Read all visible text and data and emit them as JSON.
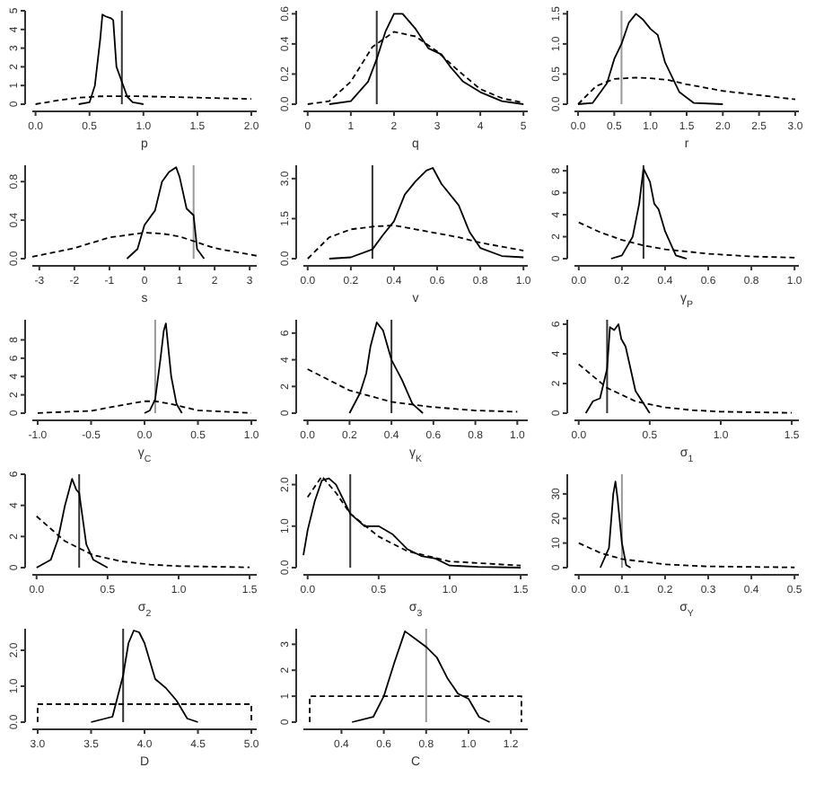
{
  "chart_data": [
    {
      "type": "line",
      "xlabel": "p",
      "xlim": [
        -0.03,
        2.05
      ],
      "xticks": [
        {
          "value": 0,
          "label": "0.0"
        },
        {
          "value": 0.5,
          "label": "0.5"
        },
        {
          "value": 1,
          "label": "1.0"
        },
        {
          "value": 1.5,
          "label": "1.5"
        },
        {
          "value": 2,
          "label": "2.0"
        }
      ],
      "ylim": [
        0,
        5
      ],
      "yticks": [
        0,
        1,
        2,
        3,
        4,
        5
      ],
      "ref_lines": [
        {
          "axis": "x",
          "value": 0.8,
          "color": "#333333"
        }
      ],
      "series": [
        {
          "color": "#000000",
          "line_style": "solid",
          "x": [
            0.4,
            0.5,
            0.55,
            0.6,
            0.62,
            0.65,
            0.7,
            0.72,
            0.75,
            0.8,
            0.85,
            0.9,
            0.95,
            1.0
          ],
          "values": [
            0,
            0.1,
            1,
            3.5,
            4.8,
            4.7,
            4.6,
            4.5,
            2,
            1.2,
            0.4,
            0.1,
            0.05,
            0
          ]
        },
        {
          "color": "#000000",
          "line_style": "dashed",
          "x": [
            0,
            0.2,
            0.4,
            0.6,
            0.8,
            1.0,
            1.5,
            2.0
          ],
          "values": [
            0,
            0.2,
            0.35,
            0.42,
            0.43,
            0.42,
            0.35,
            0.28
          ]
        }
      ]
    },
    {
      "type": "line",
      "xlabel": "q",
      "xlim": [
        -0.1,
        5.1
      ],
      "xticks": [
        0,
        1,
        2,
        3,
        4,
        5
      ],
      "ylim": [
        0,
        0.62
      ],
      "yticks": [
        {
          "value": 0,
          "label": "0.0"
        },
        {
          "value": 0.2,
          "label": "0.2"
        },
        {
          "value": 0.4,
          "label": "0.4"
        },
        {
          "value": 0.6,
          "label": "0.6"
        }
      ],
      "ref_lines": [
        {
          "axis": "x",
          "value": 1.6,
          "color": "#333333"
        }
      ],
      "series": [
        {
          "color": "#000000",
          "line_style": "solid",
          "x": [
            0.5,
            1,
            1.4,
            1.6,
            1.8,
            2,
            2.2,
            2.5,
            2.8,
            3.1,
            3.3,
            3.6,
            4,
            4.5,
            5
          ],
          "values": [
            0,
            0.02,
            0.15,
            0.3,
            0.48,
            0.6,
            0.6,
            0.5,
            0.37,
            0.33,
            0.25,
            0.15,
            0.08,
            0.02,
            0
          ]
        },
        {
          "color": "#000000",
          "line_style": "dashed",
          "x": [
            0,
            0.5,
            1,
            1.5,
            2,
            2.5,
            3,
            3.5,
            4,
            4.5,
            5
          ],
          "values": [
            0,
            0.02,
            0.15,
            0.38,
            0.48,
            0.45,
            0.35,
            0.22,
            0.1,
            0.04,
            0.01
          ]
        }
      ]
    },
    {
      "type": "line",
      "xlabel": "r",
      "xlim": [
        -0.05,
        3.05
      ],
      "xticks": [
        {
          "value": 0,
          "label": "0.0"
        },
        {
          "value": 0.5,
          "label": "0.5"
        },
        {
          "value": 1,
          "label": "1.0"
        },
        {
          "value": 1.5,
          "label": "1.5"
        },
        {
          "value": 2,
          "label": "2.0"
        },
        {
          "value": 2.5,
          "label": "2.5"
        },
        {
          "value": 3,
          "label": "3.0"
        }
      ],
      "ylim": [
        0,
        1.55
      ],
      "yticks": [
        {
          "value": 0,
          "label": "0.0"
        },
        {
          "value": 0.5,
          "label": "0.5"
        },
        {
          "value": 1,
          "label": "1.0"
        },
        {
          "value": 1.5,
          "label": "1.5"
        }
      ],
      "ref_lines": [
        {
          "axis": "x",
          "value": 0.6,
          "color": "#999999"
        }
      ],
      "series": [
        {
          "color": "#000000",
          "line_style": "solid",
          "x": [
            0,
            0.2,
            0.4,
            0.5,
            0.6,
            0.7,
            0.8,
            0.9,
            1.0,
            1.1,
            1.2,
            1.4,
            1.6,
            2.0
          ],
          "values": [
            0,
            0.02,
            0.35,
            0.75,
            1.0,
            1.35,
            1.5,
            1.4,
            1.25,
            1.15,
            0.7,
            0.2,
            0.02,
            0
          ]
        },
        {
          "color": "#000000",
          "line_style": "dashed",
          "x": [
            0,
            0.25,
            0.5,
            0.8,
            1.0,
            1.25,
            1.5,
            2,
            2.5,
            3
          ],
          "values": [
            0,
            0.3,
            0.42,
            0.44,
            0.43,
            0.4,
            0.33,
            0.22,
            0.15,
            0.08
          ]
        }
      ]
    },
    {
      "type": "line",
      "xlabel": "s",
      "xlim": [
        -3.2,
        3.2
      ],
      "xticks": [
        -3,
        -2,
        -1,
        0,
        1,
        2,
        3
      ],
      "ylim": [
        0,
        0.97
      ],
      "yticks": [
        {
          "value": 0,
          "label": "0.0"
        },
        {
          "value": 0.4,
          "label": "0.4"
        },
        {
          "value": 0.8,
          "label": "0.8"
        }
      ],
      "ref_lines": [
        {
          "axis": "x",
          "value": 1.4,
          "color": "#999999"
        }
      ],
      "series": [
        {
          "color": "#000000",
          "line_style": "solid",
          "x": [
            -0.5,
            -0.2,
            0,
            0.3,
            0.5,
            0.7,
            0.9,
            1.0,
            1.2,
            1.4,
            1.5,
            1.7
          ],
          "values": [
            0,
            0.1,
            0.35,
            0.5,
            0.8,
            0.9,
            0.95,
            0.85,
            0.52,
            0.45,
            0.1,
            0
          ]
        },
        {
          "color": "#000000",
          "line_style": "dashed",
          "x": [
            -3.2,
            -2,
            -1,
            0,
            0.5,
            1,
            2,
            3.2
          ],
          "values": [
            0.02,
            0.11,
            0.22,
            0.27,
            0.26,
            0.23,
            0.11,
            0.03
          ]
        }
      ]
    },
    {
      "type": "line",
      "xlabel": "v",
      "xlim": [
        -0.02,
        1.02
      ],
      "xticks": [
        {
          "value": 0,
          "label": "0.0"
        },
        {
          "value": 0.2,
          "label": "0.2"
        },
        {
          "value": 0.4,
          "label": "0.4"
        },
        {
          "value": 0.6,
          "label": "0.6"
        },
        {
          "value": 0.8,
          "label": "0.8"
        },
        {
          "value": 1,
          "label": "1.0"
        }
      ],
      "ylim": [
        0,
        3.5
      ],
      "yticks": [
        {
          "value": 0,
          "label": "0.0"
        },
        {
          "value": 1.5,
          "label": "1.5"
        },
        {
          "value": 3,
          "label": "3.0"
        }
      ],
      "ref_lines": [
        {
          "axis": "x",
          "value": 0.3,
          "color": "#333333"
        }
      ],
      "series": [
        {
          "color": "#000000",
          "line_style": "solid",
          "x": [
            0.1,
            0.2,
            0.3,
            0.35,
            0.4,
            0.45,
            0.5,
            0.55,
            0.58,
            0.62,
            0.7,
            0.75,
            0.8,
            0.9,
            1.0
          ],
          "values": [
            0,
            0.05,
            0.35,
            0.9,
            1.4,
            2.4,
            2.9,
            3.3,
            3.4,
            2.8,
            2.0,
            1.0,
            0.4,
            0.1,
            0.05
          ]
        },
        {
          "color": "#000000",
          "line_style": "dashed",
          "x": [
            0,
            0.1,
            0.2,
            0.3,
            0.4,
            0.5,
            0.6,
            0.7,
            0.8,
            0.9,
            1.0
          ],
          "values": [
            0,
            0.8,
            1.1,
            1.2,
            1.25,
            1.1,
            0.95,
            0.8,
            0.6,
            0.45,
            0.3
          ]
        }
      ]
    },
    {
      "type": "line",
      "xlabel": "γ$_{P}$",
      "xlim": [
        -0.02,
        1.02
      ],
      "xticks": [
        {
          "value": 0,
          "label": "0.0"
        },
        {
          "value": 0.2,
          "label": "0.2"
        },
        {
          "value": 0.4,
          "label": "0.4"
        },
        {
          "value": 0.6,
          "label": "0.6"
        },
        {
          "value": 0.8,
          "label": "0.8"
        },
        {
          "value": 1,
          "label": "1.0"
        }
      ],
      "ylim": [
        0,
        8.5
      ],
      "yticks": [
        0,
        2,
        4,
        6,
        8
      ],
      "ref_lines": [
        {
          "axis": "x",
          "value": 0.3,
          "color": "#333333"
        }
      ],
      "series": [
        {
          "color": "#000000",
          "line_style": "solid",
          "x": [
            0.15,
            0.2,
            0.25,
            0.28,
            0.3,
            0.33,
            0.35,
            0.37,
            0.4,
            0.45,
            0.5
          ],
          "values": [
            0,
            0.3,
            2,
            5,
            8.2,
            7,
            5,
            4.5,
            2.5,
            0.3,
            0
          ]
        },
        {
          "color": "#000000",
          "line_style": "dashed",
          "x": [
            0,
            0.1,
            0.2,
            0.3,
            0.4,
            0.6,
            0.8,
            1.0
          ],
          "values": [
            3.3,
            2.4,
            1.7,
            1.2,
            0.85,
            0.45,
            0.2,
            0.1
          ]
        }
      ]
    },
    {
      "type": "line",
      "xlabel": "γ$_{C}$",
      "xlim": [
        -1.05,
        1.05
      ],
      "xticks": [
        {
          "value": -1,
          "label": "-1.0"
        },
        {
          "value": -0.5,
          "label": "-0.5"
        },
        {
          "value": 0,
          "label": "0.0"
        },
        {
          "value": 0.5,
          "label": "0.5"
        },
        {
          "value": 1,
          "label": "1.0"
        }
      ],
      "ylim": [
        0,
        10.2
      ],
      "yticks": [
        0,
        2,
        4,
        6,
        8
      ],
      "ref_lines": [
        {
          "axis": "x",
          "value": 0.1,
          "color": "#999999"
        }
      ],
      "series": [
        {
          "color": "#000000",
          "line_style": "solid",
          "x": [
            0,
            0.05,
            0.1,
            0.15,
            0.18,
            0.2,
            0.25,
            0.3,
            0.35
          ],
          "values": [
            0,
            0.3,
            1.5,
            6,
            9,
            9.8,
            4,
            1,
            0
          ]
        },
        {
          "color": "#000000",
          "line_style": "dashed",
          "x": [
            -1,
            -0.5,
            -0.25,
            0,
            0.1,
            0.25,
            0.5,
            1
          ],
          "values": [
            0.02,
            0.25,
            0.8,
            1.3,
            1.3,
            1.0,
            0.3,
            0.02
          ]
        }
      ]
    },
    {
      "type": "line",
      "xlabel": "γ$_{K}$",
      "xlim": [
        -0.02,
        1.05
      ],
      "xticks": [
        {
          "value": 0,
          "label": "0.0"
        },
        {
          "value": 0.2,
          "label": "0.2"
        },
        {
          "value": 0.4,
          "label": "0.4"
        },
        {
          "value": 0.6,
          "label": "0.6"
        },
        {
          "value": 0.8,
          "label": "0.8"
        },
        {
          "value": 1,
          "label": "1.0"
        }
      ],
      "ylim": [
        0,
        7
      ],
      "yticks": [
        0,
        2,
        4,
        6
      ],
      "ref_lines": [
        {
          "axis": "x",
          "value": 0.4,
          "color": "#333333"
        }
      ],
      "series": [
        {
          "color": "#000000",
          "line_style": "solid",
          "x": [
            0.2,
            0.25,
            0.28,
            0.3,
            0.33,
            0.36,
            0.4,
            0.45,
            0.5,
            0.55
          ],
          "values": [
            0,
            1.5,
            3,
            5,
            6.8,
            6.2,
            4,
            2.5,
            0.7,
            0
          ]
        },
        {
          "color": "#000000",
          "line_style": "dashed",
          "x": [
            0,
            0.2,
            0.4,
            0.6,
            0.8,
            1.0
          ],
          "values": [
            3.3,
            1.7,
            0.85,
            0.45,
            0.2,
            0.1
          ]
        }
      ]
    },
    {
      "type": "line",
      "xlabel": "σ$_{1}$",
      "xlim": [
        -0.03,
        1.55
      ],
      "xticks": [
        {
          "value": 0,
          "label": "0.0"
        },
        {
          "value": 0.5,
          "label": "0.5"
        },
        {
          "value": 1,
          "label": "1.0"
        },
        {
          "value": 1.5,
          "label": "1.5"
        }
      ],
      "ylim": [
        0,
        6.3
      ],
      "yticks": [
        0,
        2,
        4,
        6
      ],
      "ref_lines": [
        {
          "axis": "x",
          "value": 0.2,
          "color": "#333333"
        }
      ],
      "series": [
        {
          "color": "#000000",
          "line_style": "solid",
          "x": [
            0.05,
            0.1,
            0.15,
            0.2,
            0.22,
            0.25,
            0.28,
            0.3,
            0.33,
            0.4,
            0.5
          ],
          "values": [
            0,
            0.8,
            1,
            3,
            5.8,
            5.6,
            6,
            5,
            4.5,
            1.5,
            0
          ]
        },
        {
          "color": "#000000",
          "line_style": "dashed",
          "x": [
            0,
            0.2,
            0.4,
            0.6,
            0.8,
            1,
            1.5
          ],
          "values": [
            3.3,
            1.7,
            0.8,
            0.4,
            0.2,
            0.1,
            0.02
          ]
        }
      ]
    },
    {
      "type": "line",
      "xlabel": "σ$_{2}$",
      "xlim": [
        -0.03,
        1.55
      ],
      "xticks": [
        {
          "value": 0,
          "label": "0.0"
        },
        {
          "value": 0.5,
          "label": "0.5"
        },
        {
          "value": 1,
          "label": "1.0"
        },
        {
          "value": 1.5,
          "label": "1.5"
        }
      ],
      "ylim": [
        0,
        6
      ],
      "yticks": [
        0,
        2,
        4,
        6
      ],
      "ref_lines": [
        {
          "axis": "x",
          "value": 0.3,
          "color": "#333333"
        }
      ],
      "series": [
        {
          "color": "#000000",
          "line_style": "solid",
          "x": [
            0,
            0.1,
            0.15,
            0.2,
            0.25,
            0.28,
            0.3,
            0.35,
            0.4,
            0.5
          ],
          "values": [
            0,
            0.5,
            1.8,
            4,
            5.7,
            5,
            4.8,
            1.5,
            0.5,
            0
          ]
        },
        {
          "color": "#000000",
          "line_style": "dashed",
          "x": [
            0,
            0.2,
            0.4,
            0.6,
            0.8,
            1,
            1.5
          ],
          "values": [
            3.3,
            1.7,
            0.8,
            0.4,
            0.2,
            0.1,
            0.02
          ]
        }
      ]
    },
    {
      "type": "line",
      "xlabel": "σ$_{3}$",
      "xlim": [
        -0.03,
        1.55
      ],
      "xticks": [
        {
          "value": 0,
          "label": "0.0"
        },
        {
          "value": 0.5,
          "label": "0.5"
        },
        {
          "value": 1,
          "label": "1.0"
        },
        {
          "value": 1.5,
          "label": "1.5"
        }
      ],
      "ylim": [
        0,
        2.25
      ],
      "yticks": [
        {
          "value": 0,
          "label": "0.0"
        },
        {
          "value": 1,
          "label": "1.0"
        },
        {
          "value": 2,
          "label": "2.0"
        }
      ],
      "ref_lines": [
        {
          "axis": "x",
          "value": 0.3,
          "color": "#333333"
        }
      ],
      "series": [
        {
          "color": "#000000",
          "line_style": "solid",
          "x": [
            -0.03,
            0,
            0.05,
            0.1,
            0.15,
            0.2,
            0.3,
            0.4,
            0.5,
            0.6,
            0.7,
            0.8,
            0.9,
            1.0,
            1.2,
            1.5
          ],
          "values": [
            0.3,
            0.9,
            1.6,
            2.1,
            2.15,
            2.0,
            1.3,
            1.0,
            1.0,
            0.8,
            0.45,
            0.28,
            0.22,
            0.05,
            0.02,
            0
          ]
        },
        {
          "color": "#000000",
          "line_style": "dashed",
          "x": [
            0,
            0.1,
            0.2,
            0.3,
            0.5,
            0.7,
            1,
            1.5
          ],
          "values": [
            1.7,
            2.2,
            1.8,
            1.3,
            0.75,
            0.4,
            0.15,
            0.05
          ]
        }
      ]
    },
    {
      "type": "line",
      "xlabel": "σ$_{Y}$",
      "xlim": [
        -0.01,
        0.51
      ],
      "xticks": [
        {
          "value": 0,
          "label": "0.0"
        },
        {
          "value": 0.1,
          "label": "0.1"
        },
        {
          "value": 0.2,
          "label": "0.2"
        },
        {
          "value": 0.3,
          "label": "0.3"
        },
        {
          "value": 0.4,
          "label": "0.4"
        },
        {
          "value": 0.5,
          "label": "0.5"
        }
      ],
      "ylim": [
        0,
        38
      ],
      "yticks": [
        0,
        10,
        20,
        30
      ],
      "ref_lines": [
        {
          "axis": "x",
          "value": 0.1,
          "color": "#999999"
        }
      ],
      "series": [
        {
          "color": "#000000",
          "line_style": "solid",
          "x": [
            0.05,
            0.07,
            0.08,
            0.085,
            0.09,
            0.1,
            0.11,
            0.12
          ],
          "values": [
            0,
            8,
            30,
            35,
            28,
            10,
            1,
            0
          ]
        },
        {
          "color": "#000000",
          "line_style": "dashed",
          "x": [
            0,
            0.05,
            0.1,
            0.2,
            0.3,
            0.5
          ],
          "values": [
            10,
            6,
            3.5,
            1.3,
            0.5,
            0.1
          ]
        }
      ]
    },
    {
      "type": "line",
      "xlabel": "D",
      "xlim": [
        2.95,
        5.05
      ],
      "xticks": [
        {
          "value": 3,
          "label": "3.0"
        },
        {
          "value": 3.5,
          "label": "3.5"
        },
        {
          "value": 4,
          "label": "4.0"
        },
        {
          "value": 4.5,
          "label": "4.5"
        },
        {
          "value": 5,
          "label": "5.0"
        }
      ],
      "ylim": [
        0,
        2.6
      ],
      "yticks": [
        {
          "value": 0,
          "label": "0.0"
        },
        {
          "value": 1,
          "label": "1.0"
        },
        {
          "value": 2,
          "label": "2.0"
        }
      ],
      "ref_lines": [
        {
          "axis": "x",
          "value": 3.8,
          "color": "#333333"
        }
      ],
      "series": [
        {
          "color": "#000000",
          "line_style": "solid",
          "x": [
            3.5,
            3.7,
            3.8,
            3.85,
            3.9,
            3.95,
            4.0,
            4.1,
            4.2,
            4.3,
            4.4,
            4.5
          ],
          "values": [
            0,
            0.15,
            1.3,
            2.2,
            2.55,
            2.5,
            2.2,
            1.2,
            0.95,
            0.6,
            0.1,
            0
          ]
        },
        {
          "color": "#000000",
          "line_style": "dashed",
          "x": [
            3,
            3,
            5,
            5
          ],
          "values": [
            0,
            0.5,
            0.5,
            0
          ]
        }
      ]
    },
    {
      "type": "line",
      "xlabel": "C",
      "xlim": [
        0.22,
        1.28
      ],
      "xticks": [
        {
          "value": 0.4,
          "label": "0.4"
        },
        {
          "value": 0.6,
          "label": "0.6"
        },
        {
          "value": 0.8,
          "label": "0.8"
        },
        {
          "value": 1,
          "label": "1.0"
        },
        {
          "value": 1.2,
          "label": "1.2"
        }
      ],
      "ylim": [
        0,
        3.6
      ],
      "yticks": [
        0,
        1,
        2,
        3
      ],
      "ref_lines": [
        {
          "axis": "x",
          "value": 0.8,
          "color": "#999999"
        }
      ],
      "series": [
        {
          "color": "#000000",
          "line_style": "solid",
          "x": [
            0.45,
            0.55,
            0.6,
            0.65,
            0.7,
            0.75,
            0.8,
            0.85,
            0.9,
            0.95,
            1.0,
            1.05,
            1.1
          ],
          "values": [
            0,
            0.2,
            1.0,
            2.3,
            3.5,
            3.2,
            2.9,
            2.5,
            1.7,
            1.1,
            0.9,
            0.2,
            0
          ]
        },
        {
          "color": "#000000",
          "line_style": "dashed",
          "x": [
            0.25,
            0.25,
            1.25,
            1.25
          ],
          "values": [
            0,
            1,
            1,
            0
          ]
        }
      ]
    }
  ]
}
